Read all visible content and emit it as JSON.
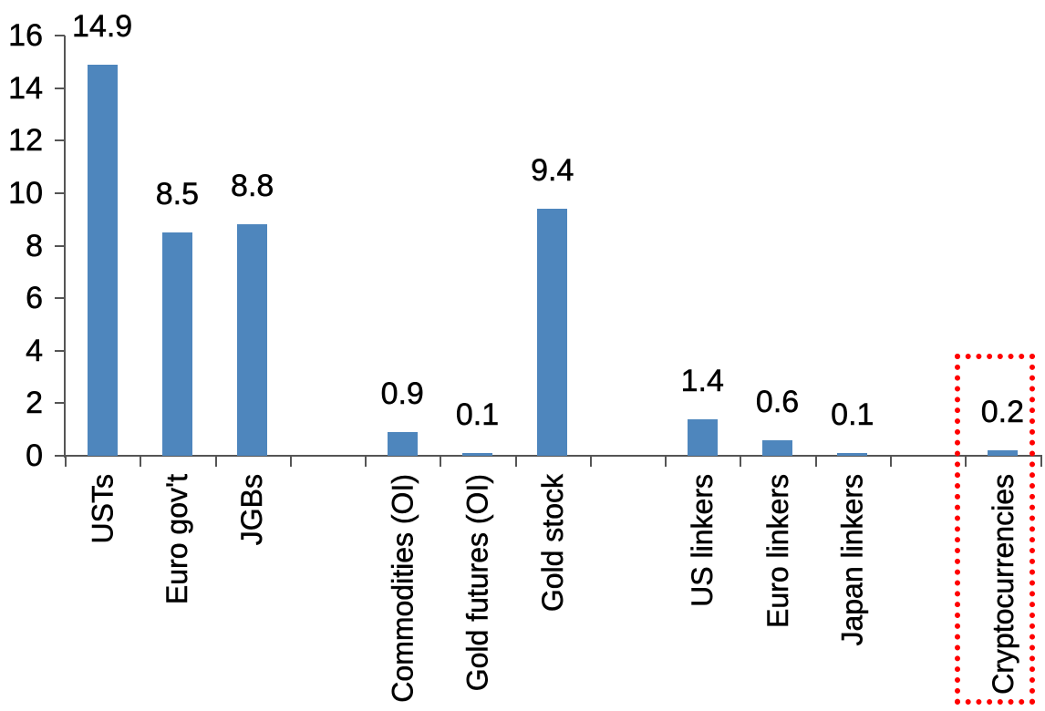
{
  "chart_data": {
    "type": "bar",
    "title": "",
    "categories": [
      "USTs",
      "Euro gov't",
      "JGBs",
      "",
      "Commodities (OI)",
      "Gold futures (OI)",
      "Gold stock",
      "",
      "US linkers",
      "Euro linkers",
      "Japan linkers",
      "",
      "Cryptocurrencies"
    ],
    "values": [
      14.9,
      8.5,
      8.8,
      null,
      0.9,
      0.1,
      9.4,
      null,
      1.4,
      0.6,
      0.1,
      null,
      0.2
    ],
    "value_labels": [
      "14.9",
      "8.5",
      "8.8",
      null,
      "0.9",
      "0.1",
      "9.4",
      null,
      "1.4",
      "0.6",
      "0.1",
      null,
      "0.2"
    ],
    "y_axis": {
      "tick_labels": [
        "0",
        "2",
        "4",
        "6",
        "8",
        "10",
        "12",
        "14",
        "16"
      ],
      "ticks": [
        0,
        2,
        4,
        6,
        8,
        10,
        12,
        14,
        16
      ],
      "range": [
        0,
        16
      ]
    },
    "grid": false,
    "legend_position": "none",
    "bar_color": "#4E86BD",
    "axis_color": "#555555",
    "text_color": "#000000",
    "highlight": {
      "category": "Cryptocurrencies",
      "shape": "dotted-rectangle",
      "color": "#FF0000"
    }
  }
}
